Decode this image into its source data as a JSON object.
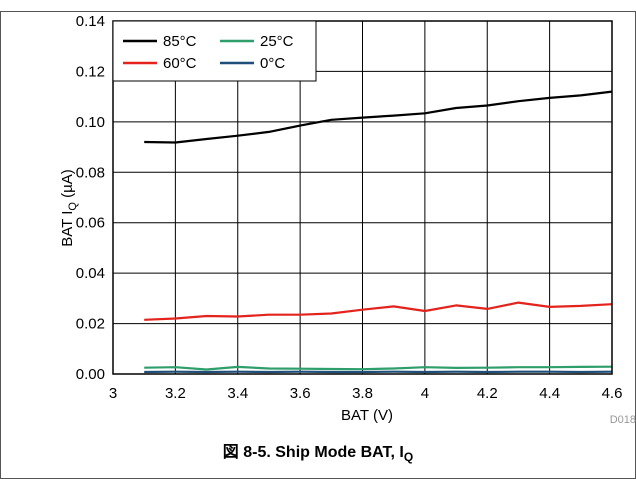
{
  "figure": {
    "caption_prefix": "図 8-5. Ship Mode BAT, I",
    "caption_sub": "Q",
    "code": "D018"
  },
  "chart_data": {
    "type": "line",
    "xlabel": "BAT (V)",
    "ylabel_prefix": "BAT I",
    "ylabel_sub": "Q",
    "ylabel_suffix": " (µA)",
    "xlim": [
      3,
      4.6
    ],
    "ylim": [
      0,
      0.14
    ],
    "xticks": [
      "3",
      "3.2",
      "3.4",
      "3.6",
      "3.8",
      "4",
      "4.2",
      "4.4",
      "4.6"
    ],
    "yticks": [
      "0.00",
      "0.02",
      "0.04",
      "0.06",
      "0.08",
      "0.10",
      "0.12",
      "0.14"
    ],
    "grid": true,
    "legend_position": "top-left",
    "x": [
      3.1,
      3.2,
      3.3,
      3.4,
      3.5,
      3.6,
      3.7,
      3.8,
      3.9,
      4.0,
      4.1,
      4.2,
      4.3,
      4.4,
      4.5,
      4.6
    ],
    "series": [
      {
        "name": "85°C",
        "color": "#000000",
        "values": [
          0.092,
          0.0918,
          0.0932,
          0.0945,
          0.096,
          0.0985,
          0.1008,
          0.1017,
          0.1025,
          0.1034,
          0.1055,
          0.1065,
          0.1082,
          0.1095,
          0.1105,
          0.112
        ]
      },
      {
        "name": "25°C",
        "color": "#2e9e6b",
        "values": [
          0.0025,
          0.0027,
          0.0018,
          0.0028,
          0.0022,
          0.0021,
          0.002,
          0.0019,
          0.0022,
          0.0027,
          0.0024,
          0.0025,
          0.0027,
          0.0027,
          0.0028,
          0.0029
        ]
      },
      {
        "name": "60°C",
        "color": "#e3231c",
        "values": [
          0.0215,
          0.022,
          0.023,
          0.0228,
          0.0235,
          0.0235,
          0.024,
          0.0255,
          0.0268,
          0.025,
          0.0272,
          0.0258,
          0.0283,
          0.0266,
          0.027,
          0.0277
        ]
      },
      {
        "name": "0°C",
        "color": "#1f4f78",
        "values": [
          0.0008,
          0.0009,
          0.0008,
          0.0009,
          0.0008,
          0.0009,
          0.0008,
          0.0008,
          0.0009,
          0.0008,
          0.0009,
          0.0008,
          0.0009,
          0.0009,
          0.0008,
          0.0009
        ]
      }
    ]
  }
}
